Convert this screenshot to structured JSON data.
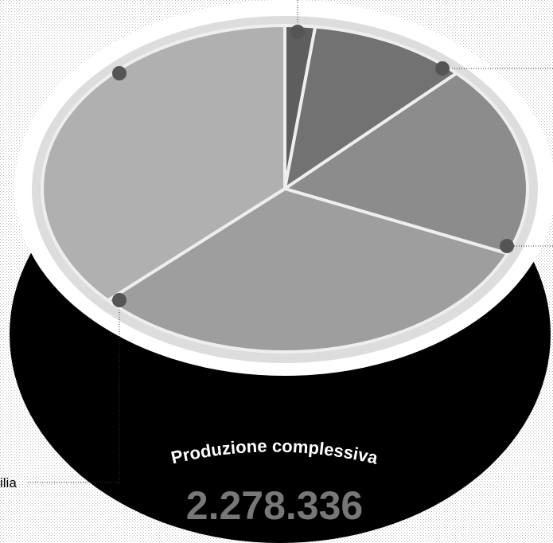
{
  "chart_data": {
    "type": "pie",
    "title": "Produzione complessiva",
    "total": {
      "value": 2278336,
      "label": "2.278.336"
    },
    "annotations": [
      "ilia"
    ],
    "categories": [
      null,
      null,
      null,
      null,
      null
    ],
    "values": [
      2,
      10.5,
      19,
      31.5,
      37
    ],
    "colors": [
      "#5e5e5e",
      "#727272",
      "#8c8c8c",
      "#9e9e9e",
      "#b0b0b0"
    ]
  }
}
